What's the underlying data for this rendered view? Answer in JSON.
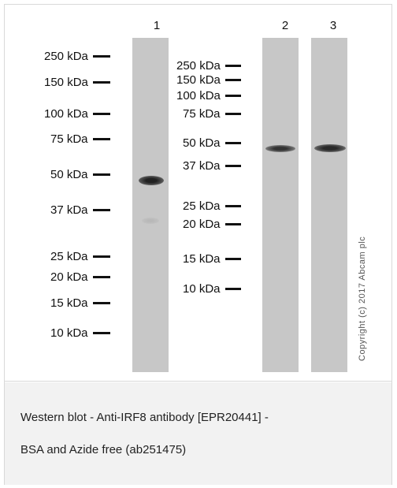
{
  "lanes": [
    {
      "number": "1"
    },
    {
      "number": "2"
    },
    {
      "number": "3"
    }
  ],
  "markers_left": [
    "250 kDa",
    "150 kDa",
    "100 kDa",
    "75 kDa",
    "50 kDa",
    "37 kDa",
    "25 kDa",
    "20 kDa",
    "15 kDa",
    "10 kDa"
  ],
  "markers_right": [
    "250 kDa",
    "150 kDa",
    "100 kDa",
    "75 kDa",
    "50 kDa",
    "37 kDa",
    "25 kDa",
    "20 kDa",
    "15 kDa",
    "10 kDa"
  ],
  "copyright": "Copyright (c) 2017 Abcam plc",
  "caption": {
    "line1": "Western blot - Anti-IRF8 antibody [EPR20441] -",
    "line2": "BSA and Azide free (ab251475)"
  },
  "colors": {
    "lane": "#c7c7c7",
    "band": "#2a2a2a",
    "caption_bg": "#f2f2f2"
  }
}
